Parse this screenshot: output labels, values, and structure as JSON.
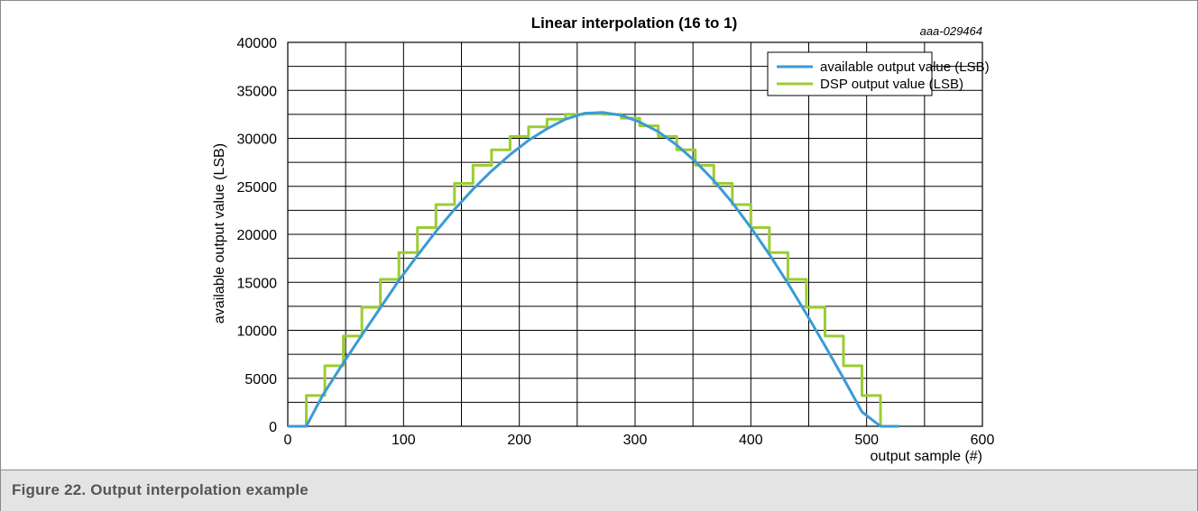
{
  "figure": {
    "reference": "aaa-029464",
    "caption": "Figure 22.  Output interpolation example"
  },
  "chart_data": {
    "type": "line",
    "title": "Linear interpolation (16 to 1)",
    "xlabel": "output sample (#)",
    "ylabel": "available output value (LSB)",
    "xlim": [
      0,
      600
    ],
    "ylim": [
      0,
      40000
    ],
    "x_ticks": [
      0,
      100,
      200,
      300,
      400,
      500,
      600
    ],
    "y_ticks": [
      0,
      5000,
      10000,
      15000,
      20000,
      25000,
      30000,
      35000,
      40000
    ],
    "grid": true,
    "legend_position": "top-right",
    "colors": {
      "available": "#3a9bd5",
      "dsp": "#9acd32"
    },
    "series": [
      {
        "name": "available output value (LSB)",
        "style": "line",
        "x": [
          0,
          16,
          30,
          48,
          64,
          80,
          96,
          112,
          128,
          144,
          160,
          176,
          192,
          208,
          224,
          240,
          256,
          272,
          288,
          304,
          320,
          336,
          352,
          368,
          384,
          400,
          416,
          432,
          448,
          464,
          480,
          496,
          512,
          528
        ],
        "values": [
          0,
          0,
          3200,
          6600,
          9500,
          12350,
          15200,
          17800,
          20300,
          22600,
          24700,
          26600,
          28300,
          29800,
          31000,
          32000,
          32600,
          32700,
          32400,
          31700,
          30700,
          29300,
          27600,
          25600,
          23300,
          20700,
          17900,
          14900,
          11700,
          8400,
          5000,
          1500,
          0,
          0
        ]
      },
      {
        "name": "DSP output value (LSB)",
        "style": "step",
        "x": [
          0,
          16,
          32,
          48,
          64,
          80,
          96,
          112,
          128,
          144,
          160,
          176,
          192,
          208,
          224,
          240,
          256,
          272,
          288,
          304,
          320,
          336,
          352,
          368,
          384,
          400,
          416,
          432,
          448,
          464,
          480,
          496,
          512,
          528
        ],
        "values": [
          0,
          3200,
          6300,
          9400,
          12400,
          15300,
          18100,
          20700,
          23100,
          25300,
          27200,
          28800,
          30200,
          31200,
          32000,
          32500,
          32600,
          32500,
          32100,
          31300,
          30200,
          28800,
          27200,
          25300,
          23100,
          20700,
          18100,
          15300,
          12400,
          9400,
          6300,
          3200,
          0,
          0
        ]
      }
    ]
  }
}
